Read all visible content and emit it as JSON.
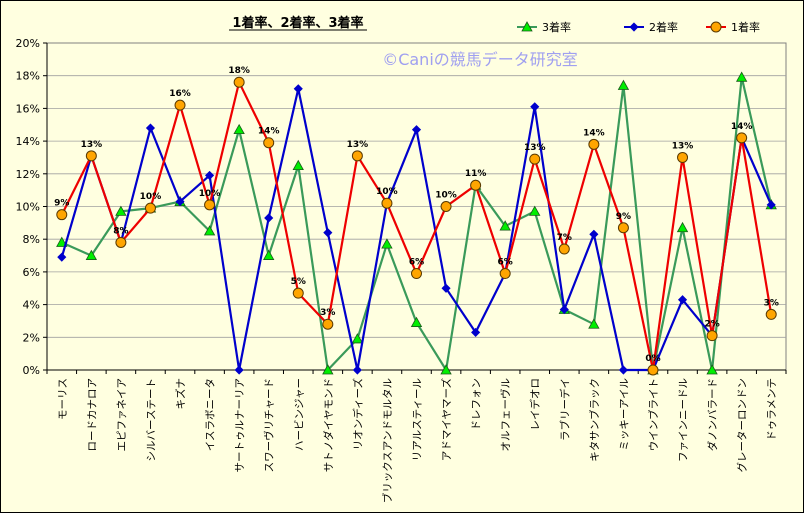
{
  "chart_data": {
    "type": "line",
    "title": "1着率、2着率、3着率",
    "watermark": "©Caniの競馬データ研究室",
    "ylim": [
      0,
      20
    ],
    "y_ticks": [
      "0%",
      "2%",
      "4%",
      "6%",
      "8%",
      "10%",
      "12%",
      "14%",
      "16%",
      "18%",
      "20%"
    ],
    "grid": "horizontal",
    "legend_position": "top-right",
    "categories": [
      "モーリス",
      "ロードカナロア",
      "エピファネイア",
      "シルバーステート",
      "キズナ",
      "イスラボニータ",
      "サートゥルナーリア",
      "スワーヴリチャード",
      "ハービンジャー",
      "サトノダイヤモンド",
      "リオンディーズ",
      "ブリックスアンドモルタル",
      "リアルスティール",
      "アドマイヤマーズ",
      "ドレフォン",
      "オルフェーヴル",
      "レイデオロ",
      "ラブリーデイ",
      "キタサンブラック",
      "ミッキーアイル",
      "ウインブライト",
      "ファインニードル",
      "ダノンバラード",
      "グレーターロンドン",
      "ドゥラメンテ"
    ],
    "series": [
      {
        "name": "3着率",
        "color": "#3a9a5a",
        "marker": "triangle",
        "marker_fill": "#00ee00",
        "values": [
          7.8,
          7.0,
          9.7,
          9.9,
          10.3,
          8.5,
          14.7,
          7.0,
          12.5,
          0,
          1.9,
          7.7,
          2.9,
          0,
          11.3,
          8.8,
          9.7,
          3.7,
          2.8,
          17.4,
          0,
          8.7,
          0,
          17.9,
          10.1
        ]
      },
      {
        "name": "2着率",
        "color": "#0000cc",
        "marker": "diamond",
        "marker_fill": "#0000cc",
        "values": [
          6.9,
          13.1,
          7.8,
          14.8,
          10.3,
          11.9,
          0,
          9.3,
          17.2,
          8.4,
          0,
          10.2,
          14.7,
          5.0,
          2.3,
          5.9,
          16.1,
          3.7,
          8.3,
          0,
          0,
          4.3,
          2.1,
          14.2,
          10.1
        ]
      },
      {
        "name": "1着率",
        "color": "#ee0000",
        "marker": "circle",
        "marker_fill": "#ffa500",
        "values": [
          9.5,
          13.1,
          7.8,
          9.9,
          16.2,
          10.1,
          17.6,
          13.9,
          4.7,
          2.8,
          13.1,
          10.2,
          5.9,
          10.0,
          11.3,
          5.9,
          12.9,
          7.4,
          13.8,
          8.7,
          0,
          13.0,
          2.1,
          14.2,
          3.4
        ]
      }
    ],
    "data_labels": {
      "series": "1着率",
      "values": [
        "9%",
        "13%",
        "8%",
        "10%",
        "16%",
        "10%",
        "18%",
        "14%",
        "5%",
        "3%",
        "13%",
        "10%",
        "6%",
        "10%",
        "11%",
        "6%",
        "13%",
        "7%",
        "14%",
        "9%",
        "0%",
        "13%",
        "2%",
        "14%",
        "3%"
      ]
    }
  }
}
